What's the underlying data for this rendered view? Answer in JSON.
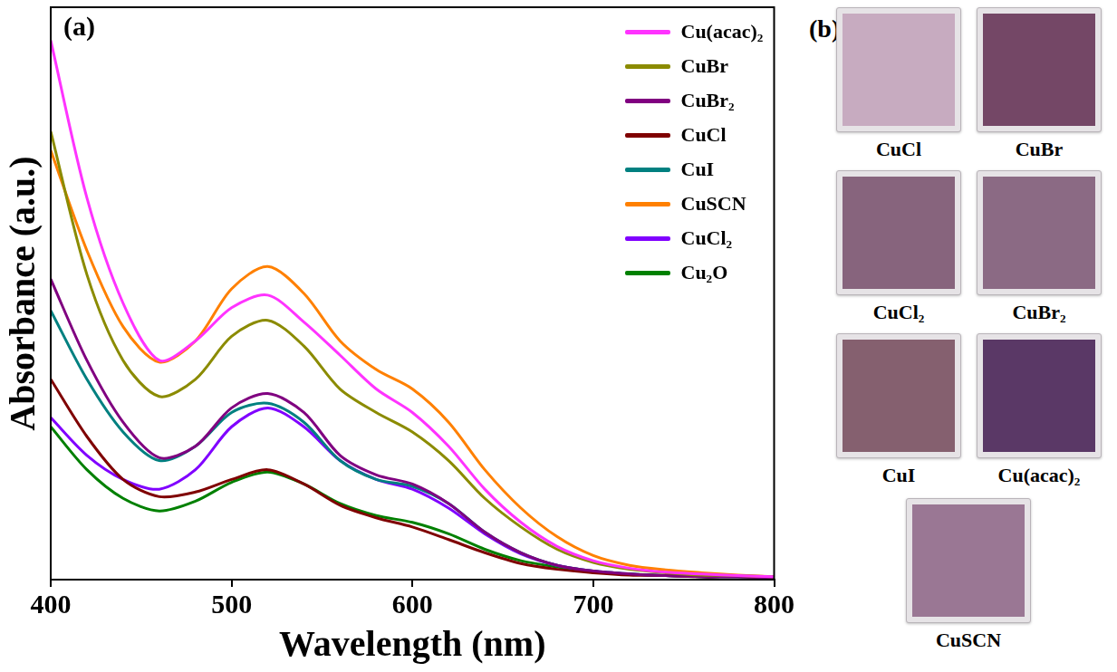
{
  "chart_data": {
    "type": "line",
    "panel_label": "(a)",
    "x_label": "Wavelength (nm)",
    "y_label": "Absorbance (a.u.)",
    "x": [
      400,
      420,
      440,
      460,
      480,
      500,
      520,
      540,
      560,
      580,
      600,
      620,
      640,
      660,
      680,
      700,
      720,
      740,
      760,
      780,
      800
    ],
    "xlim": [
      400,
      800
    ],
    "xticks": [
      400,
      500,
      600,
      700,
      800
    ],
    "ylim": [
      0,
      1
    ],
    "tick_labels": "x",
    "grid": false,
    "legend": "top-right",
    "series": [
      {
        "name": "Cu(acac)₂",
        "color": "#ff33ff",
        "values": [
          0.942,
          0.667,
          0.483,
          0.383,
          0.417,
          0.475,
          0.497,
          0.45,
          0.392,
          0.333,
          0.292,
          0.233,
          0.158,
          0.1,
          0.058,
          0.033,
          0.02,
          0.013,
          0.01,
          0.007,
          0.005
        ]
      },
      {
        "name": "CuBr",
        "color": "#8b8b00",
        "values": [
          0.783,
          0.533,
          0.383,
          0.32,
          0.35,
          0.425,
          0.453,
          0.408,
          0.333,
          0.292,
          0.258,
          0.208,
          0.142,
          0.092,
          0.053,
          0.03,
          0.018,
          0.012,
          0.008,
          0.007,
          0.005
        ]
      },
      {
        "name": "CuBr₂",
        "color": "#800080",
        "values": [
          0.525,
          0.383,
          0.275,
          0.213,
          0.233,
          0.3,
          0.325,
          0.292,
          0.217,
          0.183,
          0.167,
          0.133,
          0.083,
          0.047,
          0.025,
          0.015,
          0.01,
          0.007,
          0.005,
          0.005,
          0.003
        ]
      },
      {
        "name": "CuCl",
        "color": "#7f0000",
        "values": [
          0.35,
          0.25,
          0.175,
          0.145,
          0.153,
          0.175,
          0.192,
          0.167,
          0.13,
          0.108,
          0.092,
          0.07,
          0.047,
          0.028,
          0.018,
          0.012,
          0.008,
          0.007,
          0.005,
          0.005,
          0.003
        ]
      },
      {
        "name": "CuI",
        "color": "#008080",
        "values": [
          0.47,
          0.35,
          0.258,
          0.208,
          0.233,
          0.292,
          0.308,
          0.275,
          0.208,
          0.175,
          0.163,
          0.133,
          0.083,
          0.047,
          0.025,
          0.015,
          0.01,
          0.007,
          0.005,
          0.005,
          0.003
        ]
      },
      {
        "name": "CuSCN",
        "color": "#ff8000",
        "values": [
          0.75,
          0.575,
          0.442,
          0.38,
          0.417,
          0.508,
          0.547,
          0.5,
          0.417,
          0.367,
          0.333,
          0.275,
          0.192,
          0.125,
          0.075,
          0.042,
          0.025,
          0.017,
          0.012,
          0.008,
          0.005
        ]
      },
      {
        "name": "CuCl₂",
        "color": "#8000ff",
        "values": [
          0.283,
          0.217,
          0.175,
          0.158,
          0.192,
          0.267,
          0.3,
          0.267,
          0.208,
          0.175,
          0.158,
          0.125,
          0.08,
          0.045,
          0.025,
          0.015,
          0.01,
          0.007,
          0.005,
          0.005,
          0.003
        ]
      },
      {
        "name": "Cu₂O",
        "color": "#008000",
        "values": [
          0.267,
          0.192,
          0.142,
          0.12,
          0.137,
          0.17,
          0.188,
          0.167,
          0.133,
          0.112,
          0.1,
          0.08,
          0.053,
          0.033,
          0.022,
          0.013,
          0.01,
          0.007,
          0.005,
          0.005,
          0.003
        ]
      }
    ]
  },
  "panel_b": {
    "panel_label": "(b)",
    "samples": [
      {
        "name": "CuCl",
        "color": "#c7abc0"
      },
      {
        "name": "CuBr",
        "color": "#744766"
      },
      {
        "name": "CuCl₂",
        "color": "#87647d"
      },
      {
        "name": "CuBr₂",
        "color": "#8b6a84"
      },
      {
        "name": "CuI",
        "color": "#85606f"
      },
      {
        "name": "Cu(acac)₂",
        "color": "#5a3866"
      },
      {
        "name": "CuSCN",
        "color": "#9a7794"
      }
    ]
  }
}
